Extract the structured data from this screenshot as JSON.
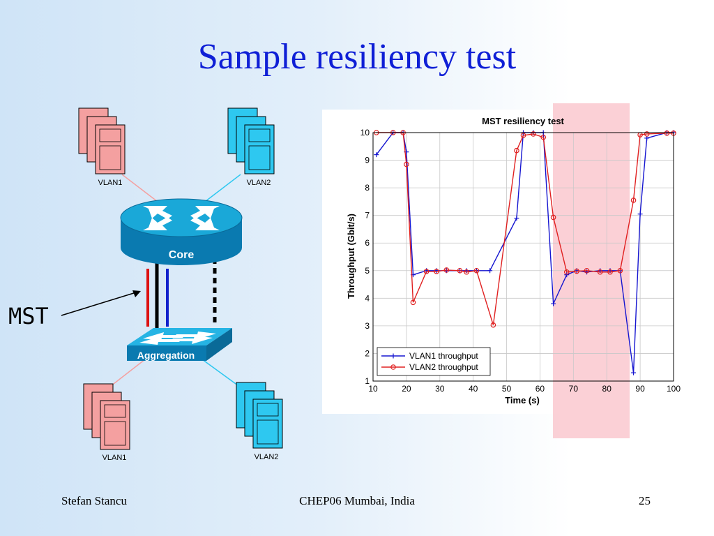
{
  "slide": {
    "title": "Sample resiliency test"
  },
  "footer": {
    "author": "Stefan Stancu",
    "event": "CHEP06 Mumbai, India",
    "page_number": "25"
  },
  "diagram": {
    "core_label": "Core",
    "aggregation_label": "Aggregation",
    "mst_label": "MST",
    "phone_groups": [
      {
        "label": "VLAN1",
        "color": "#f4a0a0"
      },
      {
        "label": "VLAN2",
        "color": "#2ec8f0"
      },
      {
        "label": "VLAN1",
        "color": "#f4a0a0"
      },
      {
        "label": "VLAN2",
        "color": "#2ec8f0"
      }
    ]
  },
  "chart_data": {
    "type": "line",
    "title": "MST resiliency test",
    "xlabel": "Time (s)",
    "ylabel": "Throughput (Gbit/s)",
    "xlim": [
      10,
      100
    ],
    "ylim": [
      1,
      10
    ],
    "xticks": [
      10,
      20,
      30,
      40,
      50,
      60,
      70,
      80,
      90,
      100
    ],
    "yticks": [
      1,
      2,
      3,
      4,
      5,
      6,
      7,
      8,
      9,
      10
    ],
    "grid": true,
    "legend_position": "bottom-left",
    "highlight_region_x": [
      64,
      87
    ],
    "series": [
      {
        "name": "VLAN1 throughput",
        "color": "#1515d0",
        "marker": "plus",
        "x": [
          11,
          16,
          19,
          20,
          22,
          26,
          29,
          32,
          36,
          38,
          41,
          45,
          53,
          55,
          58,
          61,
          64,
          68,
          71,
          74,
          78,
          81,
          84,
          88,
          90,
          92,
          98,
          100
        ],
        "y": [
          9.2,
          10,
          10,
          9.3,
          4.85,
          5,
          5,
          5,
          5,
          5,
          5,
          5,
          6.9,
          10,
          10,
          10,
          3.8,
          4.85,
          5,
          4.95,
          5,
          5,
          5,
          1.3,
          7.05,
          9.8,
          10,
          10
        ]
      },
      {
        "name": "VLAN2 throughput",
        "color": "#e02020",
        "marker": "circle",
        "x": [
          11,
          16,
          19,
          20,
          22,
          26,
          29,
          32,
          36,
          38,
          41,
          46,
          53,
          55,
          58,
          61,
          64,
          68,
          71,
          74,
          78,
          81,
          84,
          88,
          90,
          92,
          98,
          100
        ],
        "y": [
          10,
          10,
          10,
          8.85,
          3.85,
          4.97,
          4.97,
          5.02,
          5,
          4.95,
          5,
          3.03,
          9.35,
          9.9,
          9.95,
          9.83,
          6.93,
          4.95,
          4.98,
          5,
          4.95,
          4.95,
          5,
          7.55,
          9.92,
          9.95,
          9.98,
          9.98
        ]
      }
    ]
  }
}
